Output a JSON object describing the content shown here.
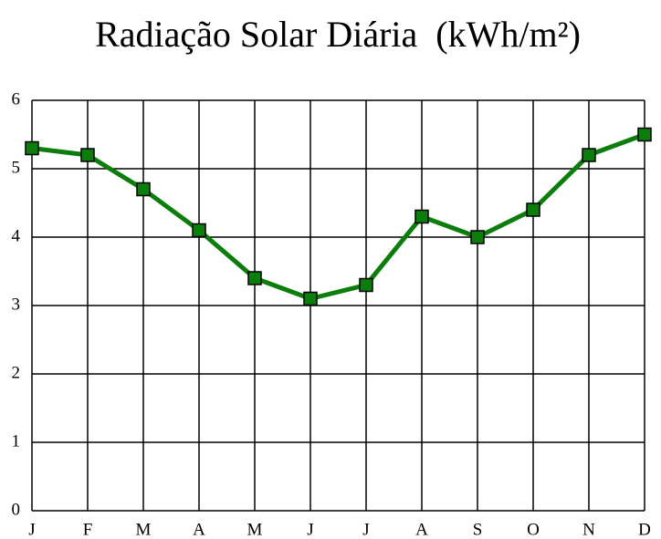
{
  "chart_data": {
    "type": "line",
    "title": "Radiação Solar Diária  (kWh/m²)",
    "categories": [
      "J",
      "F",
      "M",
      "A",
      "M",
      "J",
      "J",
      "A",
      "S",
      "O",
      "N",
      "D"
    ],
    "series": [
      {
        "name": "Radiação",
        "color": "#0a7d0a",
        "values": [
          5.3,
          5.2,
          4.7,
          4.1,
          3.4,
          3.1,
          3.3,
          4.3,
          4.0,
          4.4,
          5.2,
          5.5
        ]
      }
    ],
    "ylim": [
      0,
      6
    ],
    "yticks": [
      0,
      1,
      2,
      3,
      4,
      5,
      6
    ],
    "grid": true,
    "legend": false
  }
}
